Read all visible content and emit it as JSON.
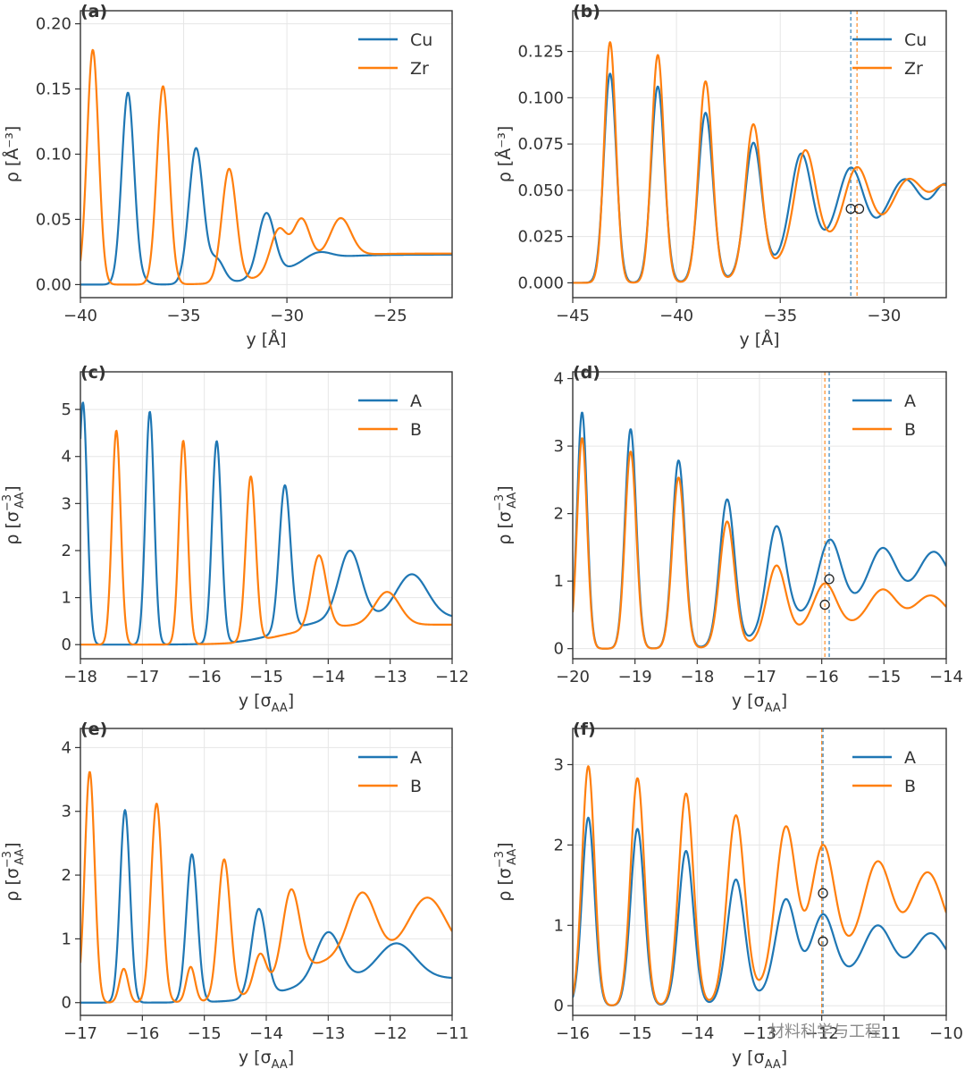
{
  "watermark": "材料科学与工程",
  "chart_data": [
    {
      "id": "a",
      "panel_label": "(a)",
      "type": "line",
      "xlabel": "y [Å]",
      "ylabel": "ρ [Å⁻³]",
      "xlim": [
        -40,
        -22
      ],
      "ylim": [
        -0.01,
        0.21
      ],
      "xticks": [
        -40,
        -35,
        -30,
        -25
      ],
      "xtick_labels": [
        "−40",
        "−35",
        "−30",
        "−25"
      ],
      "yticks": [
        0,
        0.05,
        0.1,
        0.15,
        0.2
      ],
      "ytick_labels": [
        "0.00",
        "0.05",
        "0.10",
        "0.15",
        "0.20"
      ],
      "legend": "top-right",
      "series": [
        {
          "name": "Cu",
          "color": "#1f77b4",
          "base": 0.0,
          "tail": 0.027,
          "peaks": [
            [
              -37.7,
              0.147,
              0.3
            ],
            [
              -37.0,
              0.003,
              0.3
            ],
            [
              -34.4,
              0.104,
              0.35
            ],
            [
              -33.4,
              0.018,
              0.35
            ],
            [
              -31.0,
              0.048,
              0.4
            ],
            [
              -28.5,
              0.006,
              0.6
            ]
          ]
        },
        {
          "name": "Zr",
          "color": "#ff7f0e",
          "base": 0.0,
          "tail": 0.028,
          "peaks": [
            [
              -39.4,
              0.18,
              0.28
            ],
            [
              -36.0,
              0.152,
              0.3
            ],
            [
              -32.8,
              0.087,
              0.35
            ],
            [
              -30.4,
              0.032,
              0.4
            ],
            [
              -29.3,
              0.034,
              0.4
            ],
            [
              -27.4,
              0.029,
              0.5
            ]
          ]
        }
      ],
      "markers": [],
      "vlines": []
    },
    {
      "id": "b",
      "panel_label": "(b)",
      "type": "line",
      "xlabel": "y [Å]",
      "ylabel": "ρ [Å⁻³]",
      "xlim": [
        -45,
        -27
      ],
      "ylim": [
        -0.008,
        0.147
      ],
      "xticks": [
        -45,
        -40,
        -35,
        -30
      ],
      "xtick_labels": [
        "−45",
        "−40",
        "−35",
        "−30"
      ],
      "yticks": [
        0,
        0.025,
        0.05,
        0.075,
        0.1,
        0.125
      ],
      "ytick_labels": [
        "0.000",
        "0.025",
        "0.050",
        "0.075",
        "0.100",
        "0.125"
      ],
      "legend": "top-right",
      "series": [
        {
          "name": "Cu",
          "color": "#1f77b4",
          "base": 0.0,
          "tail": 0.027,
          "peaks": [
            [
              -43.2,
              0.113,
              0.3
            ],
            [
              -40.9,
              0.106,
              0.32
            ],
            [
              -38.6,
              0.091,
              0.35
            ],
            [
              -36.3,
              0.07,
              0.4
            ],
            [
              -34.0,
              0.053,
              0.5
            ],
            [
              -31.6,
              0.04,
              0.6
            ],
            [
              -29.0,
              0.033,
              0.8
            ],
            [
              -27.0,
              0.029,
              0.6
            ]
          ]
        },
        {
          "name": "Zr",
          "color": "#ff7f0e",
          "base": 0.0,
          "tail": 0.027,
          "peaks": [
            [
              -43.2,
              0.13,
              0.28
            ],
            [
              -40.9,
              0.123,
              0.3
            ],
            [
              -38.6,
              0.108,
              0.33
            ],
            [
              -36.3,
              0.08,
              0.38
            ],
            [
              -33.8,
              0.054,
              0.5
            ],
            [
              -31.3,
              0.04,
              0.6
            ],
            [
              -28.8,
              0.033,
              0.8
            ],
            [
              -27.0,
              0.027,
              0.6
            ]
          ]
        }
      ],
      "markers": [
        [
          -31.6,
          0.04,
          "#1f77b4"
        ],
        [
          -31.2,
          0.04,
          "#ff7f0e"
        ]
      ],
      "vlines": [
        [
          -31.6,
          "#1f77b4"
        ],
        [
          -31.3,
          "#ff7f0e"
        ]
      ]
    },
    {
      "id": "c",
      "panel_label": "(c)",
      "type": "line",
      "xlabel": "y [σ_AA]",
      "ylabel": "ρ [σ_AA^-3]",
      "xlim": [
        -18,
        -12
      ],
      "ylim": [
        -0.3,
        5.8
      ],
      "xticks": [
        -18,
        -17,
        -16,
        -15,
        -14,
        -13,
        -12
      ],
      "xtick_labels": [
        "−18",
        "−17",
        "−16",
        "−15",
        "−14",
        "−13",
        "−12"
      ],
      "yticks": [
        0,
        1,
        2,
        3,
        4,
        5
      ],
      "ytick_labels": [
        "0",
        "1",
        "2",
        "3",
        "4",
        "5"
      ],
      "legend": "top-right",
      "series": [
        {
          "name": "A",
          "color": "#1f77b4",
          "base": 0.0,
          "tail": 0.68,
          "peaks": [
            [
              -17.96,
              5.15,
              0.07
            ],
            [
              -16.88,
              4.95,
              0.07
            ],
            [
              -15.8,
              4.3,
              0.075
            ],
            [
              -14.7,
              3.1,
              0.09
            ],
            [
              -13.65,
              1.45,
              0.18
            ],
            [
              -12.65,
              0.92,
              0.25
            ]
          ]
        },
        {
          "name": "B",
          "color": "#ff7f0e",
          "base": 0.0,
          "tail": 0.5,
          "peaks": [
            [
              -17.42,
              4.55,
              0.07
            ],
            [
              -16.34,
              4.33,
              0.07
            ],
            [
              -15.25,
              3.5,
              0.08
            ],
            [
              -14.15,
              1.55,
              0.12
            ],
            [
              -13.05,
              0.7,
              0.2
            ]
          ]
        }
      ],
      "markers": [],
      "vlines": []
    },
    {
      "id": "d",
      "panel_label": "(d)",
      "type": "line",
      "xlabel": "y [σ_AA]",
      "ylabel": "ρ [σ_AA^-3]",
      "xlim": [
        -20,
        -14
      ],
      "ylim": [
        -0.15,
        4.1
      ],
      "xticks": [
        -20,
        -19,
        -18,
        -17,
        -16,
        -15,
        -14
      ],
      "xtick_labels": [
        "−20",
        "−19",
        "−18",
        "−17",
        "−16",
        "−15",
        "−14"
      ],
      "yticks": [
        0,
        1,
        2,
        3,
        4
      ],
      "ytick_labels": [
        "0",
        "1",
        "2",
        "3",
        "4"
      ],
      "legend": "top-right",
      "series": [
        {
          "name": "A",
          "color": "#1f77b4",
          "base": 0.0,
          "tail": 0.77,
          "peaks": [
            [
              -19.85,
              3.5,
              0.08
            ],
            [
              -19.07,
              3.25,
              0.09
            ],
            [
              -18.3,
              2.78,
              0.1
            ],
            [
              -17.52,
              2.15,
              0.12
            ],
            [
              -16.73,
              1.5,
              0.15
            ],
            [
              -15.87,
              1.02,
              0.18
            ],
            [
              -15.02,
              0.84,
              0.22
            ],
            [
              -14.2,
              0.78,
              0.25
            ]
          ]
        },
        {
          "name": "B",
          "color": "#ff7f0e",
          "base": 0.0,
          "tail": 0.42,
          "peaks": [
            [
              -19.85,
              3.12,
              0.08
            ],
            [
              -19.07,
              2.92,
              0.09
            ],
            [
              -18.3,
              2.53,
              0.1
            ],
            [
              -17.52,
              1.85,
              0.12
            ],
            [
              -16.73,
              1.06,
              0.15
            ],
            [
              -15.95,
              0.65,
              0.18
            ],
            [
              -15.02,
              0.52,
              0.22
            ],
            [
              -14.25,
              0.43,
              0.25
            ]
          ]
        }
      ],
      "markers": [
        [
          -15.88,
          1.03,
          "#1f77b4"
        ],
        [
          -15.95,
          0.65,
          "#ff7f0e"
        ]
      ],
      "vlines": [
        [
          -15.88,
          "#1f77b4"
        ],
        [
          -15.95,
          "#ff7f0e"
        ]
      ]
    },
    {
      "id": "e",
      "panel_label": "(e)",
      "type": "line",
      "xlabel": "y [σ_AA]",
      "ylabel": "ρ [σ_AA^-3]",
      "xlim": [
        -17,
        -11
      ],
      "ylim": [
        -0.2,
        4.3
      ],
      "xticks": [
        -17,
        -16,
        -15,
        -14,
        -13,
        -12,
        -11
      ],
      "xtick_labels": [
        "−17",
        "−16",
        "−15",
        "−14",
        "−13",
        "−12",
        "−11"
      ],
      "yticks": [
        0,
        1,
        2,
        3,
        4
      ],
      "ytick_labels": [
        "0",
        "1",
        "2",
        "3",
        "4"
      ],
      "legend": "top-right",
      "series": [
        {
          "name": "A",
          "color": "#1f77b4",
          "base": 0.0,
          "tail": 0.45,
          "peaks": [
            [
              -16.28,
              3.02,
              0.08
            ],
            [
              -15.2,
              2.32,
              0.09
            ],
            [
              -14.12,
              1.38,
              0.12
            ],
            [
              -13.0,
              0.77,
              0.2
            ],
            [
              -11.9,
              0.55,
              0.3
            ]
          ]
        },
        {
          "name": "B",
          "color": "#ff7f0e",
          "base": 0.0,
          "tail": 0.88,
          "peaks": [
            [
              -16.85,
              3.62,
              0.08
            ],
            [
              -16.3,
              0.53,
              0.07
            ],
            [
              -15.77,
              3.12,
              0.09
            ],
            [
              -15.22,
              0.55,
              0.07
            ],
            [
              -14.68,
              2.2,
              0.1
            ],
            [
              -14.1,
              0.58,
              0.1
            ],
            [
              -13.6,
              1.35,
              0.14
            ],
            [
              -12.45,
              1.0,
              0.22
            ],
            [
              -11.4,
              0.9,
              0.3
            ]
          ]
        }
      ],
      "markers": [],
      "vlines": []
    },
    {
      "id": "f",
      "panel_label": "(f)",
      "type": "line",
      "xlabel": "y [σ_AA]",
      "ylabel": "ρ [σ_AA^-3]",
      "xlim": [
        -16,
        -10
      ],
      "ylim": [
        -0.12,
        3.45
      ],
      "xticks": [
        -16,
        -15,
        -14,
        -13,
        -12,
        -11,
        -10
      ],
      "xtick_labels": [
        "−16",
        "−15",
        "−14",
        "−13",
        "−12",
        "−11",
        "−10"
      ],
      "yticks": [
        0,
        1,
        2,
        3
      ],
      "ytick_labels": [
        "0",
        "1",
        "2",
        "3"
      ],
      "legend": "top-right",
      "series": [
        {
          "name": "A",
          "color": "#1f77b4",
          "base": 0.0,
          "tail": 0.45,
          "peaks": [
            [
              -15.75,
              2.34,
              0.1
            ],
            [
              -14.96,
              2.2,
              0.11
            ],
            [
              -14.18,
              1.92,
              0.12
            ],
            [
              -13.38,
              1.52,
              0.14
            ],
            [
              -12.58,
              1.1,
              0.16
            ],
            [
              -11.98,
              0.8,
              0.18
            ],
            [
              -11.1,
              0.62,
              0.22
            ],
            [
              -10.25,
              0.52,
              0.25
            ]
          ]
        },
        {
          "name": "B",
          "color": "#ff7f0e",
          "base": 0.0,
          "tail": 0.8,
          "peaks": [
            [
              -15.75,
              2.98,
              0.1
            ],
            [
              -14.96,
              2.83,
              0.11
            ],
            [
              -14.18,
              2.63,
              0.12
            ],
            [
              -13.38,
              2.28,
              0.14
            ],
            [
              -12.58,
              1.83,
              0.16
            ],
            [
              -11.98,
              1.4,
              0.18
            ],
            [
              -11.1,
              1.12,
              0.22
            ],
            [
              -10.3,
              0.98,
              0.25
            ]
          ]
        }
      ],
      "markers": [
        [
          -11.98,
          0.8,
          "#1f77b4"
        ],
        [
          -11.98,
          1.4,
          "#ff7f0e"
        ]
      ],
      "vlines": [
        [
          -11.98,
          "#1f77b4"
        ],
        [
          -12.0,
          "#ff7f0e"
        ]
      ]
    }
  ]
}
